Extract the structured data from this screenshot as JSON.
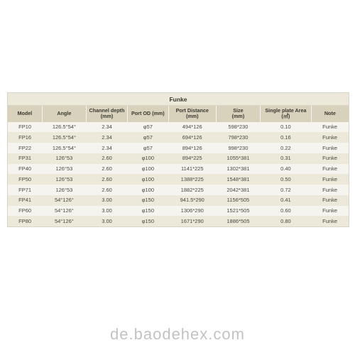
{
  "title": "Funke",
  "watermark": "de.baodehex.com",
  "columns": [
    "Model",
    "Angle",
    "Channel depth\n(mm)",
    "Port OD (mm)",
    "Port Distance\n(mm)",
    "Size\n(mm)",
    "Single plate Area\n(㎡)",
    "Note"
  ],
  "col_widths": [
    "10%",
    "13%",
    "12%",
    "12%",
    "14%",
    "13%",
    "15%",
    "11%"
  ],
  "rows": [
    [
      "FP10",
      "126.5°54°",
      "2.34",
      "φ57",
      "494*126",
      "598*230",
      "0.10",
      "Funke"
    ],
    [
      "FP16",
      "126.5°54°",
      "2.34",
      "φ57",
      "694*126",
      "798*230",
      "0.16",
      "Funke"
    ],
    [
      "FP22",
      "126.5°54°",
      "2.34",
      "φ57",
      "894*126",
      "998*230",
      "0.22",
      "Funke"
    ],
    [
      "FP31",
      "126°53",
      "2.60",
      "φ100",
      "894*225",
      "1055*381",
      "0.31",
      "Funke"
    ],
    [
      "FP40",
      "126°53",
      "2.60",
      "φ100",
      "1141*225",
      "1302*381",
      "0.40",
      "Funke"
    ],
    [
      "FP50",
      "126°53",
      "2.60",
      "φ100",
      "1388*225",
      "1548*381",
      "0.50",
      "Funke"
    ],
    [
      "FP71",
      "126°53",
      "2.60",
      "φ100",
      "1882*225",
      "2042*381",
      "0.72",
      "Funke"
    ],
    [
      "FP41",
      "54°126°",
      "3.00",
      "φ150",
      "941.5*290",
      "1156*505",
      "0.41",
      "Funke"
    ],
    [
      "FP60",
      "54°126°",
      "3.00",
      "φ150",
      "1306*290",
      "1521*505",
      "0.60",
      "Funke"
    ],
    [
      "FP80",
      "54°126°",
      "3.00",
      "φ150",
      "1671*290",
      "1886*505",
      "0.80",
      "Funke"
    ]
  ],
  "style": {
    "title_fontsize": 8.5,
    "header_fontsize": 7.2,
    "cell_fontsize": 7.5,
    "header_bg": "#d8d1bb",
    "row_odd_bg": "#f6f4ee",
    "row_even_bg": "#ece8da",
    "border_color": "#d9d4c3",
    "text_color": "#3a3a33"
  }
}
